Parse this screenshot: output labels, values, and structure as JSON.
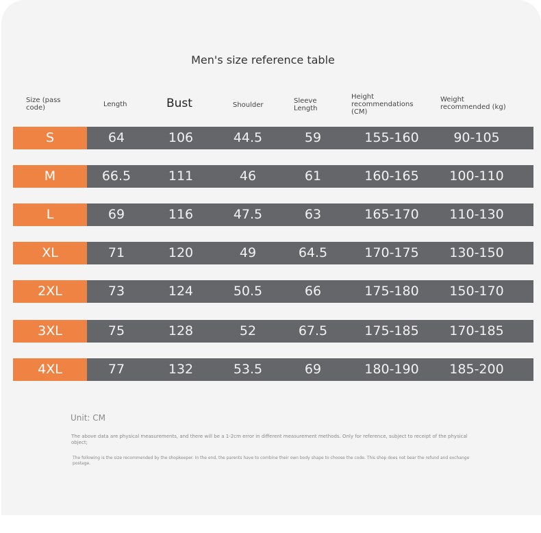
{
  "title": "Men's size reference table",
  "headers": {
    "size": "Size (pass code)",
    "length": "Length",
    "bust": "Bust",
    "shoulder": "Shoulder",
    "sleeve": "Sleeve Length",
    "height": "Height recommendations (CM)",
    "weight": "Weight recommended (kg)"
  },
  "rows": [
    {
      "size": "S",
      "length": "64",
      "bust": "106",
      "shoulder": "44.5",
      "sleeve": "59",
      "height": "155-160",
      "weight": "90-105"
    },
    {
      "size": "M",
      "length": "66.5",
      "bust": "111",
      "shoulder": "46",
      "sleeve": "61",
      "height": "160-165",
      "weight": "100-110"
    },
    {
      "size": "L",
      "length": "69",
      "bust": "116",
      "shoulder": "47.5",
      "sleeve": "63",
      "height": "165-170",
      "weight": "110-130"
    },
    {
      "size": "XL",
      "length": "71",
      "bust": "120",
      "shoulder": "49",
      "sleeve": "64.5",
      "height": "170-175",
      "weight": "130-150"
    },
    {
      "size": "2XL",
      "length": "73",
      "bust": "124",
      "shoulder": "50.5",
      "sleeve": "66",
      "height": "175-180",
      "weight": "150-170"
    },
    {
      "size": "3XL",
      "length": "75",
      "bust": "128",
      "shoulder": "52",
      "sleeve": "67.5",
      "height": "175-185",
      "weight": "170-185"
    },
    {
      "size": "4XL",
      "length": "77",
      "bust": "132",
      "shoulder": "53.5",
      "sleeve": "69",
      "height": "180-190",
      "weight": "185-200"
    }
  ],
  "unit": "Unit: CM",
  "note1": "The above data are physical measurements, and there will be a 1-2cm error in different measurement methods. Only for reference, subject to receipt of the physical object;",
  "note2": "The following is the size recommended by the shopkeeper. In the end, the parents have to combine their own body shape to choose the code. This shop does not bear the refund and exchange postage.",
  "colors": {
    "accent": "#ef8344",
    "row": "#646669",
    "background": "#f4f4f5"
  }
}
